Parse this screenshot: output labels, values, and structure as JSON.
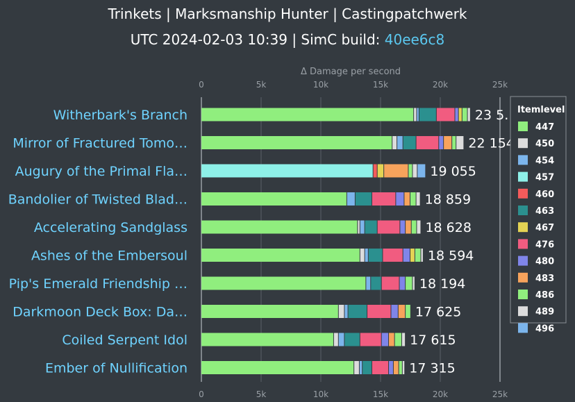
{
  "title": "Trinkets | Marksmanship Hunter | Castingpatchwerk",
  "subtitle_prefix": "UTC 2024-02-03 10:39 | SimC build: ",
  "subtitle_build": "40ee6c8",
  "colors": {
    "background": "#343a40",
    "category_text": "#6fd3ff",
    "build_link": "#5bc8f0",
    "grid": "#5a6068",
    "axis_line": "#9aa0a6"
  },
  "chart_data": {
    "type": "bar",
    "orientation": "horizontal",
    "stacked": true,
    "xlabel": "Δ Damage per second",
    "xlim": [
      0,
      25000
    ],
    "xticks": [
      0,
      5000,
      10000,
      15000,
      20000,
      25000
    ],
    "xtick_labels": [
      "0",
      "5k",
      "10k",
      "15k",
      "20k",
      "25k"
    ],
    "legend_title": "Itemlevel",
    "legend_position": "right",
    "legend": [
      {
        "name": "447",
        "color": "#90ee7e"
      },
      {
        "name": "450",
        "color": "#dcdcdc"
      },
      {
        "name": "454",
        "color": "#7cb5ec"
      },
      {
        "name": "457",
        "color": "#8ef0e8"
      },
      {
        "name": "460",
        "color": "#f45b5b"
      },
      {
        "name": "463",
        "color": "#2b908f"
      },
      {
        "name": "467",
        "color": "#e4d354"
      },
      {
        "name": "476",
        "color": "#f15c80"
      },
      {
        "name": "480",
        "color": "#8085e9"
      },
      {
        "name": "483",
        "color": "#f7a35c"
      },
      {
        "name": "486",
        "color": "#90ee7e"
      },
      {
        "name": "489",
        "color": "#dcdcdc"
      },
      {
        "name": "496",
        "color": "#7cb5ec"
      }
    ],
    "bars": [
      {
        "name": "Witherbark's Branch",
        "total_label": "23 5…",
        "segments": [
          {
            "ilvl": "447",
            "value": 17800
          },
          {
            "ilvl": "450",
            "value": 250
          },
          {
            "ilvl": "454",
            "value": 200
          },
          {
            "ilvl": "463",
            "value": 1450
          },
          {
            "ilvl": "476",
            "value": 1550
          },
          {
            "ilvl": "480",
            "value": 300
          },
          {
            "ilvl": "467",
            "value": 300
          },
          {
            "ilvl": "486",
            "value": 450
          },
          {
            "ilvl": "489",
            "value": 250
          }
        ]
      },
      {
        "name": "Mirror of Fractured Tomo…",
        "total_label": "22 154",
        "segments": [
          {
            "ilvl": "447",
            "value": 16000
          },
          {
            "ilvl": "450",
            "value": 400
          },
          {
            "ilvl": "454",
            "value": 500
          },
          {
            "ilvl": "463",
            "value": 1100
          },
          {
            "ilvl": "476",
            "value": 1900
          },
          {
            "ilvl": "480",
            "value": 400
          },
          {
            "ilvl": "483",
            "value": 700
          },
          {
            "ilvl": "486",
            "value": 350
          },
          {
            "ilvl": "489",
            "value": 650
          }
        ]
      },
      {
        "name": "Augury of the Primal Fla…",
        "total_label": "19 055",
        "segments": [
          {
            "ilvl": "457",
            "value": 14400
          },
          {
            "ilvl": "460",
            "value": 350
          },
          {
            "ilvl": "467",
            "value": 550
          },
          {
            "ilvl": "483",
            "value": 2050
          },
          {
            "ilvl": "486",
            "value": 350
          },
          {
            "ilvl": "489",
            "value": 400
          },
          {
            "ilvl": "496",
            "value": 700
          }
        ]
      },
      {
        "name": "Bandolier of Twisted Blad…",
        "total_label": "18 859",
        "segments": [
          {
            "ilvl": "447",
            "value": 12200
          },
          {
            "ilvl": "454",
            "value": 700
          },
          {
            "ilvl": "463",
            "value": 1400
          },
          {
            "ilvl": "476",
            "value": 2000
          },
          {
            "ilvl": "480",
            "value": 700
          },
          {
            "ilvl": "483",
            "value": 500
          },
          {
            "ilvl": "486",
            "value": 500
          },
          {
            "ilvl": "489",
            "value": 350
          }
        ]
      },
      {
        "name": "Accelerating Sandglass",
        "total_label": "18 628",
        "segments": [
          {
            "ilvl": "447",
            "value": 13100
          },
          {
            "ilvl": "450",
            "value": 200
          },
          {
            "ilvl": "454",
            "value": 400
          },
          {
            "ilvl": "463",
            "value": 1050
          },
          {
            "ilvl": "476",
            "value": 1900
          },
          {
            "ilvl": "480",
            "value": 450
          },
          {
            "ilvl": "483",
            "value": 500
          },
          {
            "ilvl": "486",
            "value": 450
          },
          {
            "ilvl": "489",
            "value": 350
          }
        ]
      },
      {
        "name": "Ashes of the Embersoul",
        "total_label": "18 594",
        "segments": [
          {
            "ilvl": "447",
            "value": 13300
          },
          {
            "ilvl": "450",
            "value": 400
          },
          {
            "ilvl": "454",
            "value": 300
          },
          {
            "ilvl": "463",
            "value": 1200
          },
          {
            "ilvl": "476",
            "value": 1700
          },
          {
            "ilvl": "480",
            "value": 600
          },
          {
            "ilvl": "467",
            "value": 400
          },
          {
            "ilvl": "486",
            "value": 500
          },
          {
            "ilvl": "489",
            "value": 200
          }
        ]
      },
      {
        "name": "Pip's Emerald Friendship …",
        "total_label": "18 194",
        "segments": [
          {
            "ilvl": "447",
            "value": 13800
          },
          {
            "ilvl": "454",
            "value": 400
          },
          {
            "ilvl": "463",
            "value": 900
          },
          {
            "ilvl": "476",
            "value": 1500
          },
          {
            "ilvl": "480",
            "value": 500
          },
          {
            "ilvl": "486",
            "value": 600
          },
          {
            "ilvl": "489",
            "value": 200
          }
        ]
      },
      {
        "name": "Darkmoon Deck Box: Da…",
        "total_label": "17 625",
        "segments": [
          {
            "ilvl": "447",
            "value": 11500
          },
          {
            "ilvl": "450",
            "value": 500
          },
          {
            "ilvl": "454",
            "value": 300
          },
          {
            "ilvl": "463",
            "value": 1600
          },
          {
            "ilvl": "476",
            "value": 2000
          },
          {
            "ilvl": "480",
            "value": 600
          },
          {
            "ilvl": "483",
            "value": 600
          },
          {
            "ilvl": "486",
            "value": 450
          }
        ]
      },
      {
        "name": "Coiled Serpent Idol",
        "total_label": "17 615",
        "segments": [
          {
            "ilvl": "447",
            "value": 11100
          },
          {
            "ilvl": "450",
            "value": 400
          },
          {
            "ilvl": "454",
            "value": 500
          },
          {
            "ilvl": "463",
            "value": 1300
          },
          {
            "ilvl": "476",
            "value": 1800
          },
          {
            "ilvl": "480",
            "value": 600
          },
          {
            "ilvl": "483",
            "value": 500
          },
          {
            "ilvl": "486",
            "value": 600
          },
          {
            "ilvl": "489",
            "value": 300
          }
        ]
      },
      {
        "name": "Ember of Nullification",
        "total_label": "17 315",
        "segments": [
          {
            "ilvl": "447",
            "value": 12800
          },
          {
            "ilvl": "450",
            "value": 450
          },
          {
            "ilvl": "454",
            "value": 250
          },
          {
            "ilvl": "463",
            "value": 800
          },
          {
            "ilvl": "476",
            "value": 1400
          },
          {
            "ilvl": "480",
            "value": 400
          },
          {
            "ilvl": "483",
            "value": 450
          },
          {
            "ilvl": "486",
            "value": 300
          },
          {
            "ilvl": "489",
            "value": 200
          }
        ]
      }
    ]
  }
}
